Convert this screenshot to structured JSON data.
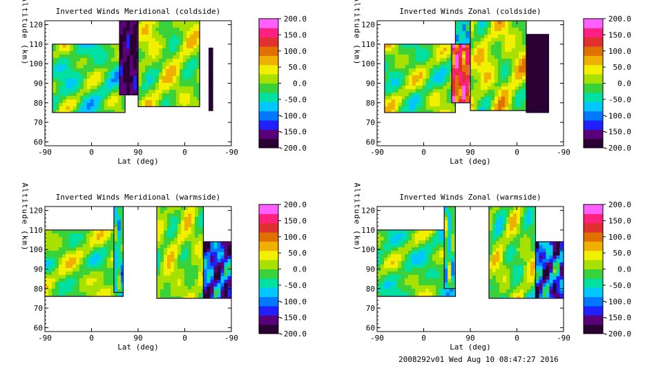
{
  "chart_data": [
    {
      "type": "heatmap",
      "title": "Inverted Winds Meridional (coldside)",
      "xlabel": "Lat (deg)",
      "ylabel": "Altitude (km)",
      "x_tick_labels": [
        "-90",
        "0",
        "90",
        "0",
        "-90"
      ],
      "y_ticks": [
        60,
        70,
        80,
        90,
        100,
        110,
        120
      ],
      "ylim": [
        58,
        122
      ],
      "colorbar_ticks": [
        "200.0",
        "150.0",
        "100.0",
        "50.0",
        "0.0",
        "-50.0",
        "-100.0",
        "-150.0",
        "-200.0"
      ],
      "clim": [
        -200,
        200
      ],
      "regions": [
        {
          "x": [
            0.04,
            0.43
          ],
          "y": [
            75,
            110
          ],
          "base": -20,
          "var": 55
        },
        {
          "x": [
            0.4,
            0.5
          ],
          "y": [
            84,
            122
          ],
          "base": -170,
          "var": 30
        },
        {
          "x": [
            0.5,
            0.83
          ],
          "y": [
            78,
            122
          ],
          "base": 10,
          "var": 50
        },
        {
          "x": [
            0.88,
            0.9
          ],
          "y": [
            76,
            108
          ],
          "base": -200,
          "var": 10
        }
      ]
    },
    {
      "type": "heatmap",
      "title": "Inverted Winds Zonal (coldside)",
      "xlabel": "Lat (deg)",
      "ylabel": "Altitude (km)",
      "x_tick_labels": [
        "-90",
        "0",
        "90",
        "0",
        "-90"
      ],
      "y_ticks": [
        60,
        70,
        80,
        90,
        100,
        110,
        120
      ],
      "ylim": [
        58,
        122
      ],
      "colorbar_ticks": [
        "200.0",
        "150.0",
        "100.0",
        "50.0",
        "0.0",
        "-50.0",
        "-100.0",
        "-150.0",
        "-200.0"
      ],
      "clim": [
        -200,
        200
      ],
      "regions": [
        {
          "x": [
            0.04,
            0.42
          ],
          "y": [
            75,
            110
          ],
          "base": -5,
          "var": 55
        },
        {
          "x": [
            0.4,
            0.5
          ],
          "y": [
            80,
            110
          ],
          "base": 130,
          "var": 70
        },
        {
          "x": [
            0.42,
            0.5
          ],
          "y": [
            110,
            122
          ],
          "base": -60,
          "var": 40
        },
        {
          "x": [
            0.5,
            0.8
          ],
          "y": [
            76,
            122
          ],
          "base": 20,
          "var": 55
        },
        {
          "x": [
            0.8,
            0.92
          ],
          "y": [
            75,
            115
          ],
          "base": -195,
          "var": 15
        }
      ]
    },
    {
      "type": "heatmap",
      "title": "Inverted Winds Meridional (warmside)",
      "xlabel": "Lat (deg)",
      "ylabel": "Altitude (km)",
      "x_tick_labels": [
        "-90",
        "0",
        "90",
        "0",
        "-90"
      ],
      "y_ticks": [
        60,
        70,
        80,
        90,
        100,
        110,
        120
      ],
      "ylim": [
        58,
        122
      ],
      "colorbar_ticks": [
        "200.0",
        "150.0",
        "100.0",
        "50.0",
        "0.0",
        "-50.0",
        "-100.0",
        "-150.0",
        "-200.0"
      ],
      "clim": [
        -200,
        200
      ],
      "regions": [
        {
          "x": [
            0.0,
            0.42
          ],
          "y": [
            76,
            110
          ],
          "base": 0,
          "var": 50
        },
        {
          "x": [
            0.37,
            0.42
          ],
          "y": [
            78,
            122
          ],
          "base": -40,
          "var": 60
        },
        {
          "x": [
            0.6,
            0.85
          ],
          "y": [
            75,
            122
          ],
          "base": 10,
          "var": 45
        },
        {
          "x": [
            0.85,
            1.0
          ],
          "y": [
            75,
            104
          ],
          "base": -120,
          "var": 80
        }
      ]
    },
    {
      "type": "heatmap",
      "title": "Inverted Winds Zonal (warmside)",
      "xlabel": "Lat (deg)",
      "ylabel": "Altitude (km)",
      "x_tick_labels": [
        "-90",
        "0",
        "90",
        "0",
        "-90"
      ],
      "y_ticks": [
        60,
        70,
        80,
        90,
        100,
        110,
        120
      ],
      "ylim": [
        58,
        122
      ],
      "colorbar_ticks": [
        "200.0",
        "150.0",
        "100.0",
        "50.0",
        "0.0",
        "-50.0",
        "-100.0",
        "-150.0",
        "-200.0"
      ],
      "clim": [
        -200,
        200
      ],
      "regions": [
        {
          "x": [
            0.0,
            0.42
          ],
          "y": [
            76,
            110
          ],
          "base": -15,
          "var": 50
        },
        {
          "x": [
            0.36,
            0.42
          ],
          "y": [
            80,
            122
          ],
          "base": -30,
          "var": 60
        },
        {
          "x": [
            0.6,
            0.85
          ],
          "y": [
            75,
            122
          ],
          "base": 0,
          "var": 55
        },
        {
          "x": [
            0.85,
            1.0
          ],
          "y": [
            75,
            104
          ],
          "base": -110,
          "var": 90
        }
      ]
    }
  ],
  "footer": "2008292v01 Wed Aug 10 08:47:27 2016",
  "colormap": [
    "#2b0033",
    "#5a007a",
    "#2020ff",
    "#0078ff",
    "#00c8ff",
    "#00e0a0",
    "#3ad23a",
    "#a8e000",
    "#f0f000",
    "#f0b000",
    "#e07000",
    "#e03030",
    "#ff2080",
    "#ff60ff"
  ]
}
